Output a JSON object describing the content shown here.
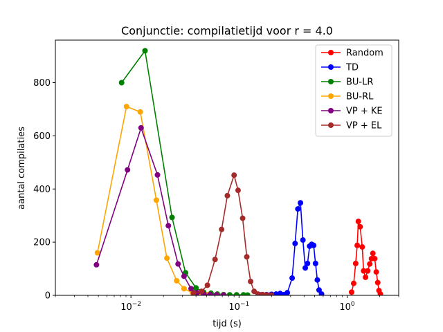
{
  "chart_data": {
    "type": "line",
    "title": "Conjunctie: compilatietijd voor r = 4.0",
    "xlabel": "tijd (s)",
    "ylabel": "aantal compilaties",
    "xscale": "log",
    "xlim": [
      0.002,
      3.0
    ],
    "ylim": [
      0,
      960
    ],
    "x_tick_labels": [
      {
        "value": 0.01,
        "label": "10",
        "exp": "−2"
      },
      {
        "value": 0.1,
        "label": "10",
        "exp": "−1"
      },
      {
        "value": 1,
        "label": "10",
        "exp": "0"
      }
    ],
    "y_ticks": [
      0,
      200,
      400,
      600,
      800
    ],
    "grid": false,
    "legend_position": "top-right",
    "series": [
      {
        "name": "Random",
        "color": "#ff0000",
        "points": [
          [
            1.1,
            12
          ],
          [
            1.15,
            45
          ],
          [
            1.2,
            120
          ],
          [
            1.24,
            188
          ],
          [
            1.27,
            278
          ],
          [
            1.32,
            258
          ],
          [
            1.38,
            182
          ],
          [
            1.42,
            92
          ],
          [
            1.48,
            68
          ],
          [
            1.55,
            92
          ],
          [
            1.62,
            118
          ],
          [
            1.68,
            138
          ],
          [
            1.73,
            158
          ],
          [
            1.8,
            138
          ],
          [
            1.86,
            88
          ],
          [
            1.92,
            48
          ],
          [
            1.97,
            18
          ],
          [
            2.03,
            5
          ]
        ]
      },
      {
        "name": "TD",
        "color": "#0000ff",
        "points": [
          [
            0.16,
            2
          ],
          [
            0.18,
            3
          ],
          [
            0.2,
            4
          ],
          [
            0.22,
            5
          ],
          [
            0.24,
            7
          ],
          [
            0.26,
            3
          ],
          [
            0.28,
            10
          ],
          [
            0.31,
            65
          ],
          [
            0.33,
            195
          ],
          [
            0.35,
            325
          ],
          [
            0.37,
            348
          ],
          [
            0.39,
            208
          ],
          [
            0.41,
            103
          ],
          [
            0.43,
            120
          ],
          [
            0.45,
            185
          ],
          [
            0.47,
            192
          ],
          [
            0.49,
            188
          ],
          [
            0.51,
            120
          ],
          [
            0.53,
            58
          ],
          [
            0.55,
            20
          ],
          [
            0.58,
            5
          ]
        ]
      },
      {
        "name": "BU-LR",
        "color": "#008000",
        "points": [
          [
            0.0082,
            800
          ],
          [
            0.0135,
            920
          ],
          [
            0.024,
            293
          ],
          [
            0.032,
            85
          ],
          [
            0.04,
            28
          ],
          [
            0.047,
            12
          ],
          [
            0.055,
            8
          ],
          [
            0.063,
            5
          ],
          [
            0.072,
            3
          ],
          [
            0.082,
            2
          ],
          [
            0.095,
            2
          ],
          [
            0.11,
            2
          ],
          [
            0.12,
            1
          ]
        ]
      },
      {
        "name": "BU-RL",
        "color": "#ffa500",
        "points": [
          [
            0.0049,
            160
          ],
          [
            0.0091,
            710
          ],
          [
            0.0122,
            690
          ],
          [
            0.0172,
            358
          ],
          [
            0.0215,
            140
          ],
          [
            0.0265,
            55
          ],
          [
            0.031,
            25
          ],
          [
            0.037,
            10
          ],
          [
            0.044,
            5
          ],
          [
            0.052,
            3
          ],
          [
            0.062,
            2
          ],
          [
            0.072,
            1
          ]
        ]
      },
      {
        "name": "VP + KE",
        "color": "#800080",
        "points": [
          [
            0.0048,
            115
          ],
          [
            0.0093,
            472
          ],
          [
            0.0124,
            630
          ],
          [
            0.0176,
            453
          ],
          [
            0.0222,
            262
          ],
          [
            0.0273,
            118
          ],
          [
            0.031,
            72
          ],
          [
            0.036,
            25
          ],
          [
            0.041,
            10
          ],
          [
            0.047,
            5
          ],
          [
            0.054,
            3
          ],
          [
            0.062,
            2
          ],
          [
            0.072,
            1
          ]
        ]
      },
      {
        "name": "VP + EL",
        "color": "#a52a2a",
        "points": [
          [
            0.038,
            8
          ],
          [
            0.045,
            15
          ],
          [
            0.051,
            38
          ],
          [
            0.06,
            135
          ],
          [
            0.069,
            248
          ],
          [
            0.078,
            375
          ],
          [
            0.09,
            452
          ],
          [
            0.098,
            395
          ],
          [
            0.108,
            290
          ],
          [
            0.118,
            145
          ],
          [
            0.128,
            52
          ],
          [
            0.138,
            15
          ],
          [
            0.15,
            5
          ],
          [
            0.165,
            3
          ],
          [
            0.18,
            2
          ],
          [
            0.2,
            1
          ]
        ]
      }
    ]
  }
}
